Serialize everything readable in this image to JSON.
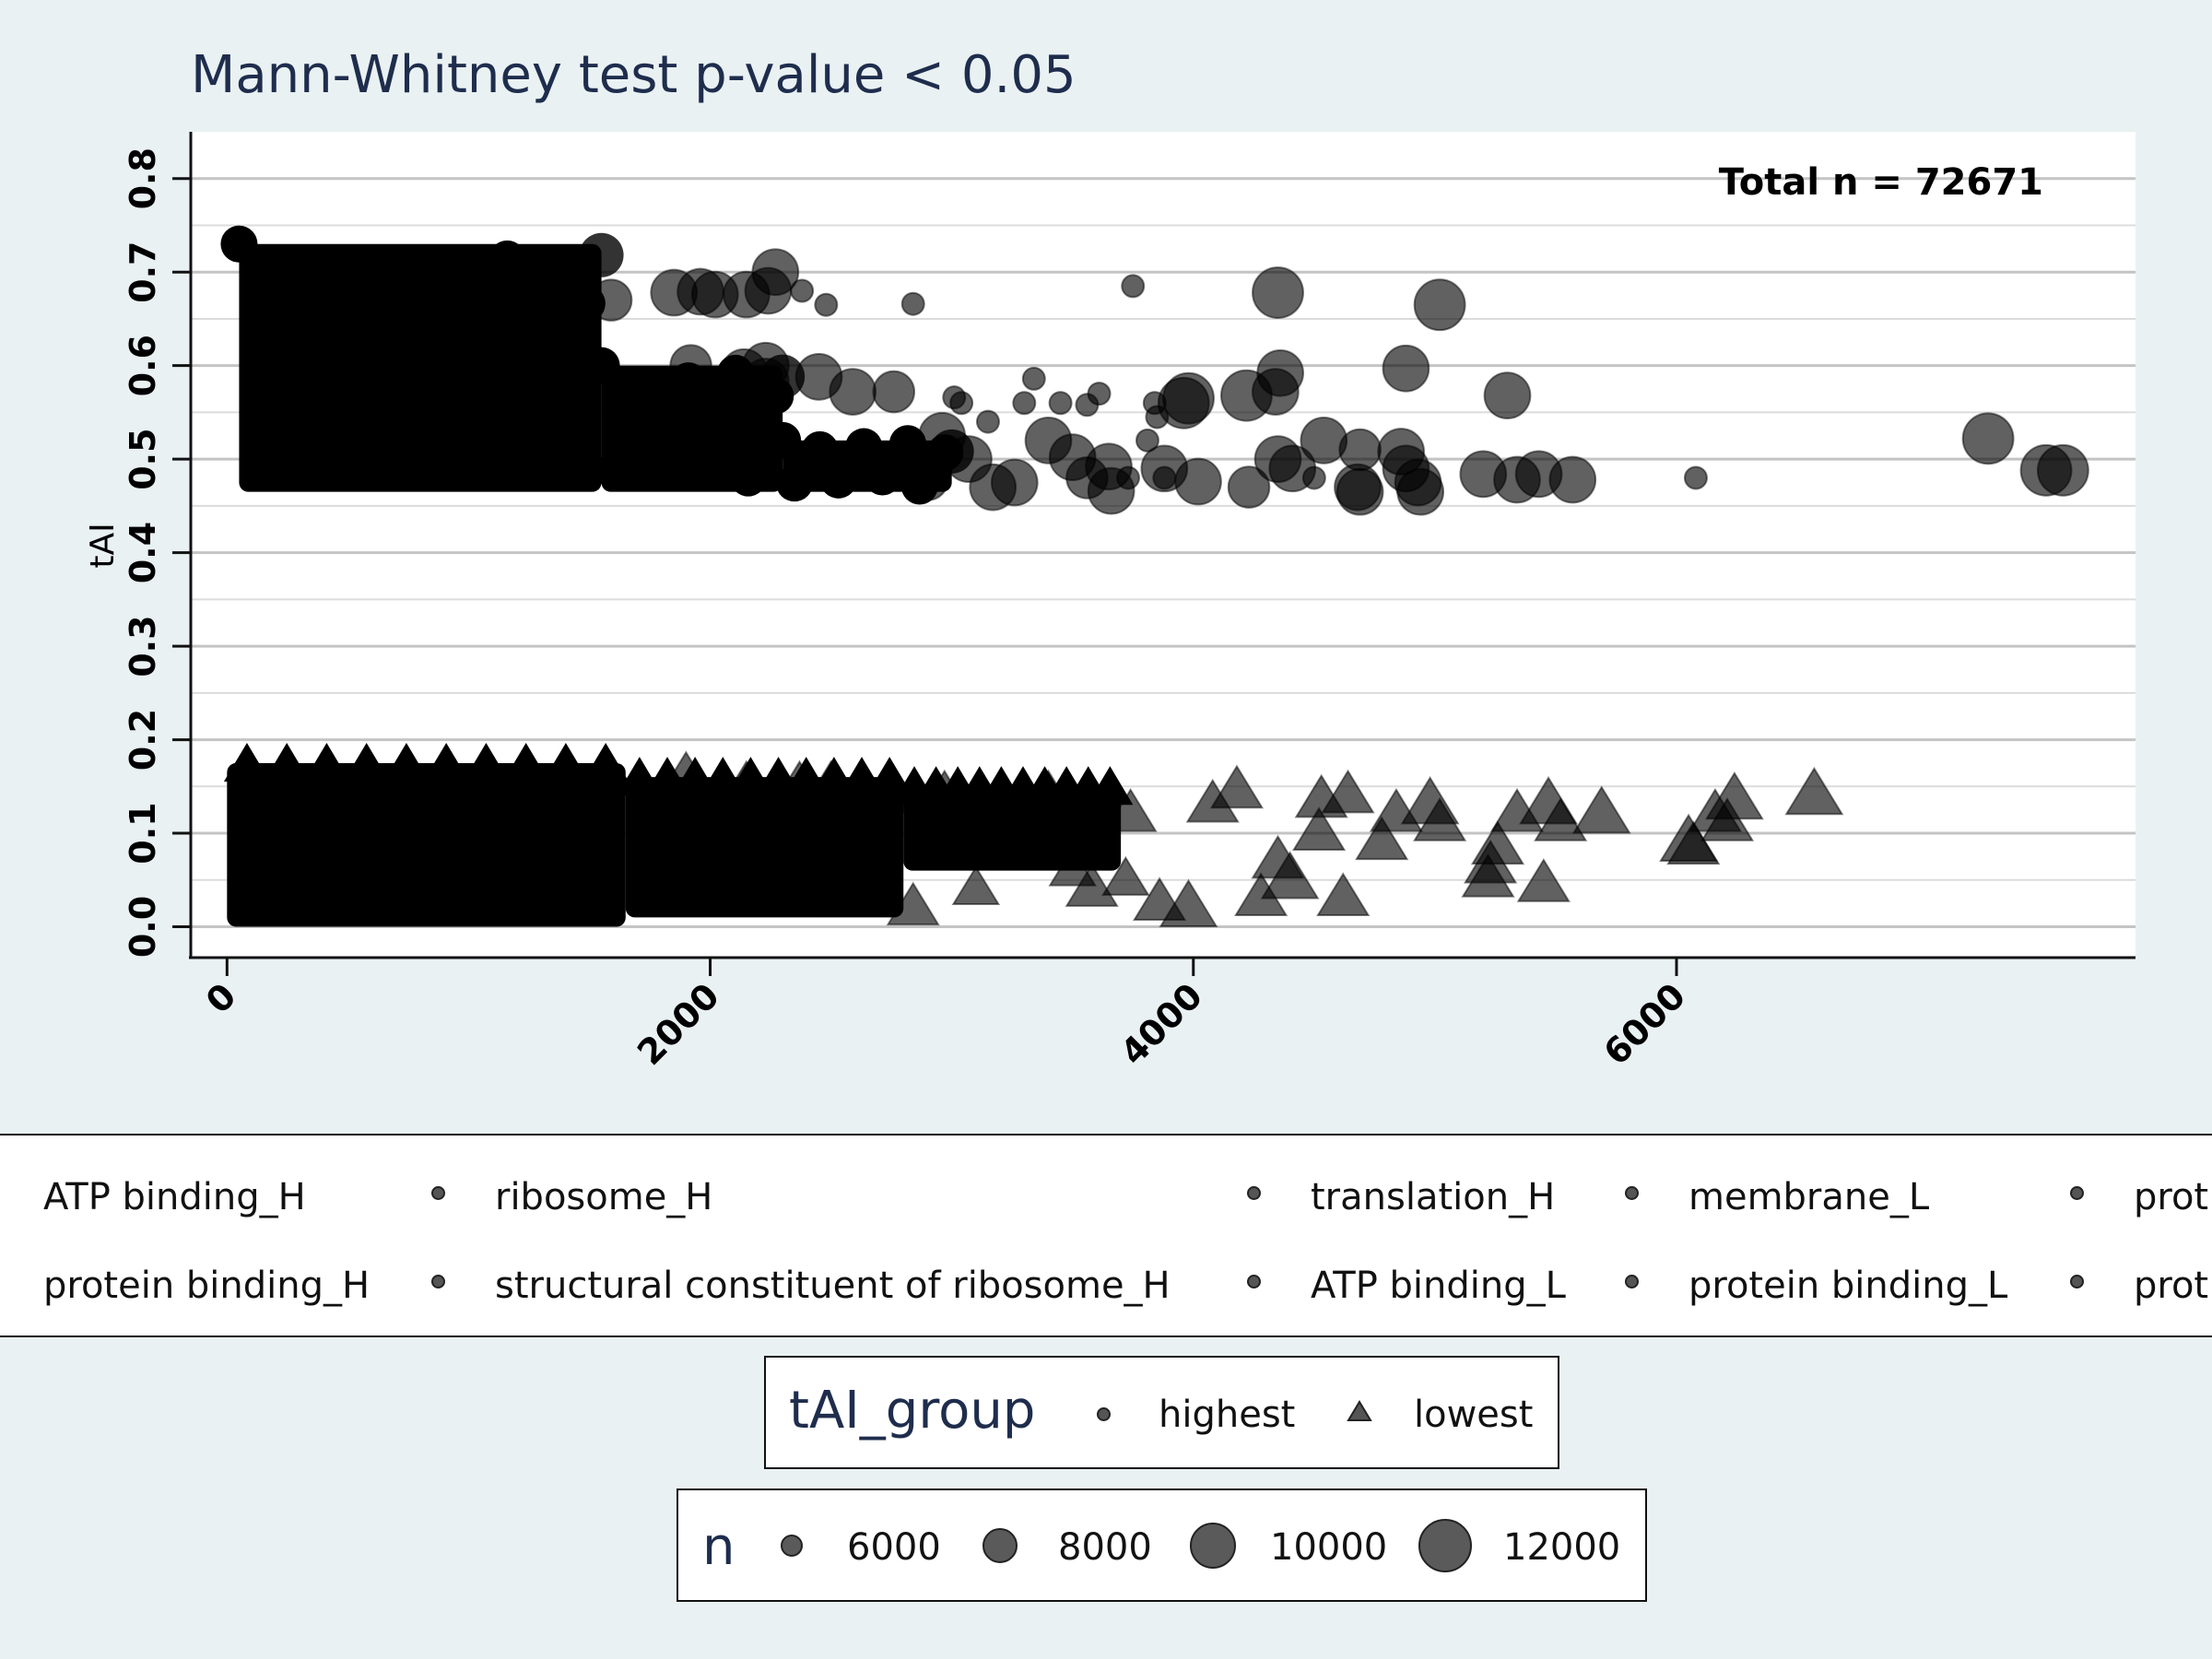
{
  "chart_data": {
    "type": "scatter",
    "title": "Mann-Whitney test  p-value < 0.05",
    "annotation": "Total n = 72671",
    "xlabel": "",
    "ylabel": "tAI",
    "xlim": [
      -150,
      7900
    ],
    "ylim": [
      -0.033,
      0.85
    ],
    "x_ticks": [
      0,
      2000,
      4000,
      6000
    ],
    "y_ticks": [
      0.0,
      0.1,
      0.2,
      0.3,
      0.4,
      0.5,
      0.6,
      0.7,
      0.8
    ],
    "y_tick_labels": [
      "0.0",
      "0.1",
      "0.2",
      "0.3",
      "0.4",
      "0.5",
      "0.6",
      "0.7",
      "0.8"
    ],
    "x_tick_labels": [
      "0",
      "2000",
      "4000",
      "6000"
    ],
    "grid": true,
    "marker_color": "#000000",
    "series": [
      {
        "name": "highest",
        "marker": "circle",
        "points": [
          [
            4350,
            0.678,
            11000
          ],
          [
            5020,
            0.665,
            11000
          ],
          [
            4880,
            0.597,
            10000
          ],
          [
            5300,
            0.568,
            10000
          ],
          [
            4360,
            0.592,
            10000
          ],
          [
            4340,
            0.572,
            10000
          ],
          [
            4220,
            0.568,
            11000
          ],
          [
            3980,
            0.565,
            11000
          ],
          [
            3960,
            0.56,
            11000
          ],
          [
            4540,
            0.52,
            10000
          ],
          [
            4690,
            0.51,
            9000
          ],
          [
            4860,
            0.508,
            10000
          ],
          [
            4350,
            0.5,
            10000
          ],
          [
            4410,
            0.49,
            10000
          ],
          [
            4880,
            0.49,
            10000
          ],
          [
            4930,
            0.475,
            10000
          ],
          [
            4020,
            0.476,
            10000
          ],
          [
            4230,
            0.47,
            9000
          ],
          [
            4680,
            0.47,
            10000
          ],
          [
            4940,
            0.465,
            10000
          ],
          [
            4690,
            0.465,
            10000
          ],
          [
            3880,
            0.49,
            10000
          ],
          [
            3400,
            0.52,
            10000
          ],
          [
            3500,
            0.502,
            10000
          ],
          [
            3650,
            0.492,
            10000
          ],
          [
            3660,
            0.466,
            10000
          ],
          [
            3560,
            0.48,
            9000
          ],
          [
            3170,
            0.47,
            10000
          ],
          [
            3260,
            0.475,
            10000
          ],
          [
            5200,
            0.484,
            10000
          ],
          [
            5340,
            0.478,
            10000
          ],
          [
            5430,
            0.484,
            10000
          ],
          [
            5570,
            0.478,
            10000
          ],
          [
            7290,
            0.522,
            11000
          ],
          [
            7530,
            0.488,
            11000
          ],
          [
            7600,
            0.488,
            11000
          ],
          [
            2270,
            0.7,
            10000
          ],
          [
            2240,
            0.68,
            10000
          ],
          [
            2150,
            0.676,
            10000
          ],
          [
            2020,
            0.676,
            10000
          ],
          [
            1960,
            0.679,
            10000
          ],
          [
            1850,
            0.678,
            10000
          ],
          [
            1590,
            0.67,
            9000
          ],
          [
            2230,
            0.6,
            10000
          ],
          [
            2230,
            0.583,
            10000
          ],
          [
            2140,
            0.593,
            10000
          ],
          [
            1920,
            0.6,
            9000
          ],
          [
            2450,
            0.588,
            10000
          ],
          [
            2590,
            0.572,
            10000
          ],
          [
            2760,
            0.572,
            9000
          ],
          [
            2960,
            0.525,
            10000
          ],
          [
            3070,
            0.5,
            10000
          ],
          [
            2720,
            0.486,
            9000
          ],
          [
            2900,
            0.478,
            9000
          ],
          [
            6080,
            0.48,
            5000
          ],
          [
            3750,
            0.685,
            5000
          ],
          [
            2380,
            0.68,
            5000
          ],
          [
            2480,
            0.665,
            5000
          ],
          [
            2840,
            0.666,
            5000
          ],
          [
            3340,
            0.586,
            5000
          ],
          [
            3610,
            0.57,
            5000
          ],
          [
            3300,
            0.56,
            5000
          ],
          [
            3450,
            0.56,
            5000
          ],
          [
            3560,
            0.558,
            5000
          ],
          [
            3840,
            0.56,
            5000
          ],
          [
            3850,
            0.545,
            5000
          ],
          [
            3810,
            0.52,
            5000
          ],
          [
            3880,
            0.48,
            5000
          ],
          [
            4500,
            0.48,
            5000
          ],
          [
            3010,
            0.566,
            5000
          ],
          [
            3040,
            0.56,
            5000
          ],
          [
            3150,
            0.54,
            5000
          ],
          [
            3730,
            0.48,
            5000
          ]
        ]
      },
      {
        "name": "lowest",
        "marker": "triangle",
        "points": [
          [
            6570,
            0.14,
            11000
          ],
          [
            6240,
            0.135,
            11000
          ],
          [
            6160,
            0.12,
            10000
          ],
          [
            6210,
            0.11,
            10000
          ],
          [
            6050,
            0.09,
            11000
          ],
          [
            6070,
            0.085,
            10000
          ],
          [
            5690,
            0.12,
            11000
          ],
          [
            5470,
            0.13,
            11000
          ],
          [
            5340,
            0.12,
            10000
          ],
          [
            5520,
            0.11,
            10000
          ],
          [
            5260,
            0.085,
            10000
          ],
          [
            5230,
            0.065,
            10000
          ],
          [
            5220,
            0.05,
            10000
          ],
          [
            5450,
            0.045,
            10000
          ],
          [
            4980,
            0.13,
            11000
          ],
          [
            5020,
            0.11,
            10000
          ],
          [
            4840,
            0.12,
            10000
          ],
          [
            4780,
            0.09,
            10000
          ],
          [
            4640,
            0.14,
            10000
          ],
          [
            4530,
            0.135,
            10000
          ],
          [
            4520,
            0.1,
            10000
          ],
          [
            4400,
            0.05,
            11000
          ],
          [
            4350,
            0.07,
            10000
          ],
          [
            4280,
            0.03,
            10000
          ],
          [
            4620,
            0.03,
            10000
          ],
          [
            4180,
            0.145,
            10000
          ],
          [
            4080,
            0.13,
            10000
          ],
          [
            3980,
            0.02,
            11000
          ],
          [
            3860,
            0.025,
            10000
          ],
          [
            2840,
            0.02,
            10000
          ],
          [
            3580,
            0.04,
            10000
          ],
          [
            3740,
            0.12,
            10000
          ],
          [
            3400,
            0.14,
            10000
          ],
          [
            3200,
            0.12,
            9000
          ],
          [
            3100,
            0.04,
            9000
          ],
          [
            2970,
            0.14,
            10000
          ],
          [
            2760,
            0.14,
            10000
          ],
          [
            2650,
            0.13,
            10000
          ],
          [
            2500,
            0.15,
            10000
          ],
          [
            2370,
            0.15,
            10000
          ],
          [
            1900,
            0.16,
            10000
          ],
          [
            2150,
            0.15,
            10000
          ],
          [
            3500,
            0.06,
            9000
          ],
          [
            3720,
            0.05,
            9000
          ],
          [
            2550,
            0.06,
            9000
          ]
        ]
      }
    ],
    "dense_clusters": [
      {
        "series": "highest",
        "x": [
          50,
          1550
        ],
        "y": [
          0.465,
          0.73
        ]
      },
      {
        "series": "highest",
        "x": [
          1550,
          2300
        ],
        "y": [
          0.465,
          0.6
        ]
      },
      {
        "series": "highest",
        "x": [
          2300,
          3000
        ],
        "y": [
          0.465,
          0.52
        ]
      },
      {
        "series": "lowest",
        "x": [
          0,
          1650
        ],
        "y": [
          0.0,
          0.175
        ]
      },
      {
        "series": "lowest",
        "x": [
          1650,
          2800
        ],
        "y": [
          0.01,
          0.16
        ]
      },
      {
        "series": "lowest",
        "x": [
          2800,
          3700
        ],
        "y": [
          0.06,
          0.15
        ]
      }
    ]
  },
  "category_legend": {
    "rows": [
      [
        "ATP binding_H",
        "ribosome_H",
        "translation_H",
        "membrane_L",
        "protein binding_L"
      ],
      [
        "protein binding_H",
        "structural constituent of ribosome_H",
        "ATP binding_L",
        "protein binding_L",
        "protein binding_L"
      ]
    ],
    "visible_rows": [
      [
        "ATP binding_H",
        "ribosome_H",
        "translation_H",
        "membrane_L",
        "prot"
      ],
      [
        "protein binding_H",
        "structural constituent of ribosome_H",
        "ATP binding_L",
        "protein binding_L",
        "prot"
      ]
    ]
  },
  "shape_legend": {
    "title": "tAI_group",
    "items": [
      {
        "label": "highest",
        "marker": "circle"
      },
      {
        "label": "lowest",
        "marker": "triangle"
      }
    ]
  },
  "size_legend": {
    "title": "n",
    "items": [
      {
        "label": "6000",
        "value": 6000
      },
      {
        "label": "8000",
        "value": 8000
      },
      {
        "label": "10000",
        "value": 10000
      },
      {
        "label": "12000",
        "value": 12000
      }
    ]
  }
}
